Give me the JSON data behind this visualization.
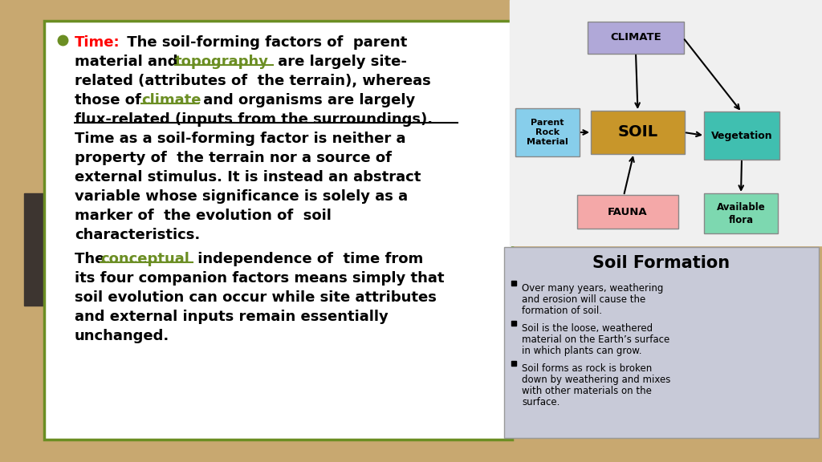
{
  "bg_color": "#C8A870",
  "text_panel_bg": "#FFFFFF",
  "text_panel_border": "#6B8E23",
  "dark_rect_color": "#3D3530",
  "bullet_color": "#6B8E23",
  "time_label_color": "#FF0000",
  "link_color": "#6B8E23",
  "main_text_color": "#000000",
  "diagram_bg": "#F0F0F0",
  "climate_box_color": "#B0A8D8",
  "soil_box_color": "#C8962A",
  "parent_box_color": "#87CEEB",
  "fauna_box_color": "#F4A8A8",
  "vegetation_box_color": "#40BFB0",
  "available_flora_color": "#7DD8B0",
  "sf_bg_color": "#C8CAD8",
  "soil_formation_title": "Soil Formation",
  "bullet1_line1": "Over many years, weathering",
  "bullet1_line2": "and erosion will cause the",
  "bullet1_line3": "formation of soil.",
  "bullet2_line1": "Soil is the loose, weathered",
  "bullet2_line2": "material on the Earth’s surface",
  "bullet2_line3": "in which plants can grow.",
  "bullet3_line1": "Soil forms as rock is broken",
  "bullet3_line2": "down by weathering and mixes",
  "bullet3_line3": "with other materials on the",
  "bullet3_line4": "surface."
}
